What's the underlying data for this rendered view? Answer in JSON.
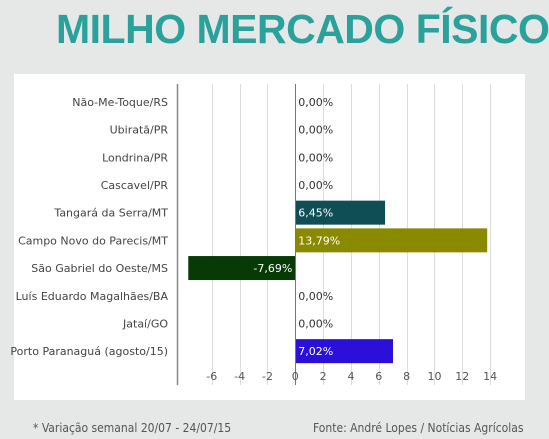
{
  "header": {
    "title": "MILHO MERCADO FÍSICO"
  },
  "footer": {
    "note": "* Variação semanal 20/07 - 24/07/15",
    "source": "Fonte: André Lopes / Notícias Agrícolas"
  },
  "chart_data": {
    "type": "bar",
    "orientation": "horizontal",
    "categories": [
      "Não-Me-Toque/RS",
      "Ubiratã/PR",
      "Londrina/PR",
      "Cascavel/PR",
      "Tangará da Serra/MT",
      "Campo Novo do Parecis/MT",
      "São Gabriel do Oeste/MS",
      "Luís Eduardo Magalhães/BA",
      "Jataí/GO",
      "Porto Paranaguá (agosto/15)"
    ],
    "values": [
      0,
      0,
      0,
      0,
      6.45,
      13.79,
      -7.69,
      0,
      0,
      7.02
    ],
    "labels": [
      "0,00%",
      "0,00%",
      "0,00%",
      "0,00%",
      "6,45%",
      "13,79%",
      "-7,69%",
      "0,00%",
      "0,00%",
      "7,02%"
    ],
    "colors": [
      "#ffffff",
      "#ffffff",
      "#ffffff",
      "#ffffff",
      "#0f4e55",
      "#8a8a00",
      "#073a07",
      "#ffffff",
      "#ffffff",
      "#2a10d8"
    ],
    "xlim": [
      -8.5,
      15.5
    ],
    "xticks": [
      -6,
      -4,
      -2,
      0,
      2,
      4,
      6,
      8,
      10,
      12,
      14
    ],
    "xtick_labels": [
      "-6",
      "-4",
      "-2",
      "0",
      "2",
      "4",
      "6",
      "8",
      "10",
      "12",
      "14"
    ],
    "grid": true,
    "title": "",
    "xlabel": "",
    "ylabel": ""
  }
}
